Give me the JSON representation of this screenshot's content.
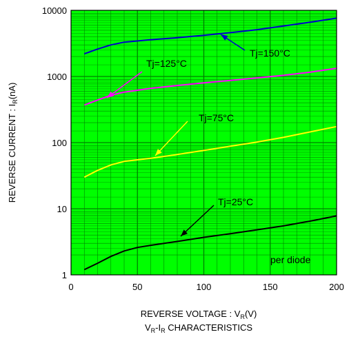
{
  "chart_data": {
    "type": "line",
    "title": "VR-IR CHARACTERISTICS",
    "title_parts": {
      "a": "V",
      "a_sub": "R",
      "mid": "-I",
      "b_sub": "R",
      "rest": " CHARACTERISTICS"
    },
    "xlabel": "REVERSE VOLTAGE : V(V)",
    "xlabel_parts": {
      "pre": "REVERSE VOLTAGE : V",
      "sub": "R",
      "post": "(V)"
    },
    "ylabel": "REVERSE CURRENT : I(nA)",
    "ylabel_parts": {
      "pre": "REVERSE CURRENT : I",
      "sub": "R",
      "post": "(nA)"
    },
    "xlim": [
      0,
      200
    ],
    "ylim": [
      1,
      10000
    ],
    "yscale": "log",
    "grid": true,
    "x_ticks": [
      "0",
      "50",
      "100",
      "150",
      "200"
    ],
    "y_ticks": [
      "1",
      "10",
      "100",
      "1000",
      "10000"
    ],
    "annotation": "per diode",
    "series": [
      {
        "name": "Tj=150°C",
        "color": "#0000cc",
        "x": [
          10,
          20,
          30,
          40,
          60,
          80,
          100,
          120,
          140,
          160,
          180,
          200
        ],
        "y": [
          2200,
          2600,
          3000,
          3300,
          3600,
          3850,
          4200,
          4600,
          5100,
          5800,
          6600,
          7600
        ]
      },
      {
        "name": "Tj=125°C",
        "color": "#ff00ff",
        "x": [
          10,
          20,
          30,
          40,
          60,
          80,
          100,
          120,
          140,
          160,
          180,
          200
        ],
        "y": [
          370,
          440,
          520,
          580,
          660,
          730,
          800,
          870,
          950,
          1040,
          1160,
          1330
        ]
      },
      {
        "name": "Tj=75°C",
        "color": "#ffff00",
        "x": [
          10,
          20,
          30,
          40,
          60,
          80,
          100,
          120,
          140,
          160,
          180,
          200
        ],
        "y": [
          30,
          38,
          46,
          52,
          58,
          66,
          76,
          88,
          102,
          120,
          145,
          175
        ]
      },
      {
        "name": "Tj=25°C",
        "color": "#000000",
        "x": [
          10,
          20,
          30,
          40,
          50,
          60,
          80,
          100,
          120,
          140,
          160,
          180,
          200
        ],
        "y": [
          1.2,
          1.5,
          1.9,
          2.3,
          2.6,
          2.8,
          3.2,
          3.7,
          4.2,
          4.8,
          5.5,
          6.5,
          7.8
        ]
      }
    ],
    "labels": [
      {
        "text": "Tj=150°C",
        "series": 0
      },
      {
        "text": "Tj=125°C",
        "series": 1
      },
      {
        "text": "Tj=75°C",
        "series": 2
      },
      {
        "text": "Tj=25°C",
        "series": 3
      }
    ],
    "colors": {
      "plot_bg": "#00ff00",
      "grid": "#008000",
      "frame": "#000000"
    }
  }
}
